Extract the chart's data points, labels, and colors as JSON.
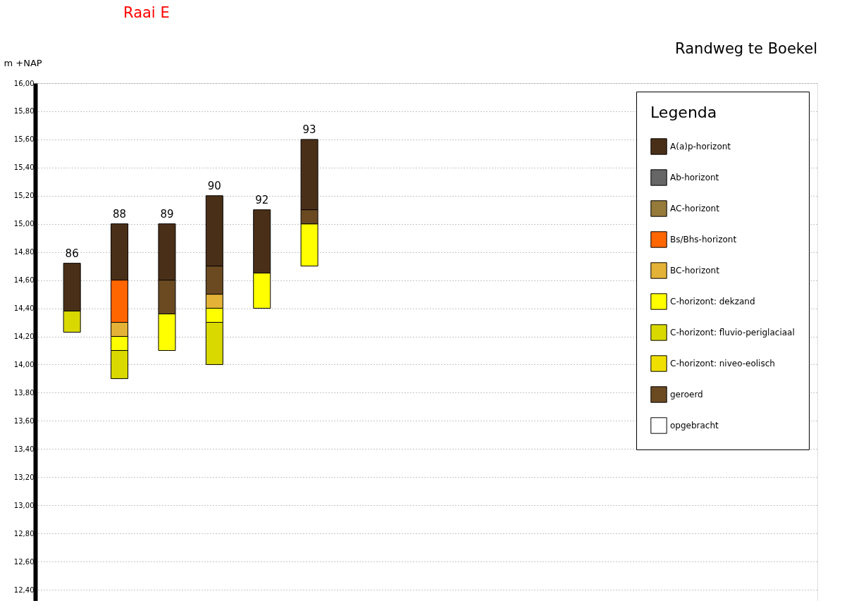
{
  "chart_data": {
    "type": "bar",
    "title": "Raai E",
    "subtitle": "Randweg te Boekel",
    "ylabel": "m +NAP",
    "legend_title": "Legenda",
    "categories": [
      "86",
      "88",
      "89",
      "90",
      "92",
      "93"
    ],
    "series": [
      {
        "name": "A(a)p-horizont",
        "color": "#4a2f18",
        "base": [
          14.38,
          14.6,
          14.6,
          14.7,
          14.65,
          15.1
        ],
        "values": [
          0.34,
          0.4,
          0.4,
          0.5,
          0.45,
          0.5
        ]
      },
      {
        "name": "Ab-horizont",
        "color": "#666666",
        "values": [
          null,
          null,
          null,
          null,
          null,
          null
        ]
      },
      {
        "name": "AC-horizont",
        "color": "#957a3a",
        "values": [
          null,
          null,
          null,
          null,
          null,
          null
        ]
      },
      {
        "name": "Bs/Bhs-horizont",
        "color": "#ff6600",
        "base": [
          null,
          14.3,
          null,
          null,
          null,
          null
        ],
        "values": [
          null,
          0.3,
          null,
          null,
          null,
          null
        ]
      },
      {
        "name": "BC-horizont",
        "color": "#e3b236",
        "base": [
          null,
          14.2,
          null,
          14.4,
          null,
          null
        ],
        "values": [
          null,
          0.1,
          null,
          0.1,
          null,
          null
        ]
      },
      {
        "name": "C-horizont: dekzand",
        "color": "#ffff00",
        "base": [
          null,
          14.1,
          14.1,
          14.3,
          14.4,
          14.7
        ],
        "values": [
          null,
          0.1,
          0.26,
          0.1,
          0.25,
          0.3
        ]
      },
      {
        "name": "C-horizont: fluvio-periglaciaal",
        "color": "#d9d900",
        "base": [
          14.23,
          13.9,
          null,
          14.0,
          null,
          null
        ],
        "values": [
          0.15,
          0.2,
          null,
          0.3,
          null,
          null
        ]
      },
      {
        "name": "C-horizont: niveo-eolisch",
        "color": "#f0e000",
        "values": [
          null,
          null,
          null,
          null,
          null,
          null
        ]
      },
      {
        "name": "geroerd",
        "color": "#6b4a22",
        "base": [
          null,
          null,
          14.36,
          14.5,
          null,
          15.0
        ],
        "values": [
          null,
          null,
          0.24,
          0.2,
          null,
          0.1
        ]
      },
      {
        "name": "opgebracht",
        "color": "#ffffff",
        "values": [
          null,
          null,
          null,
          null,
          null,
          null
        ]
      }
    ],
    "ylim": [
      12.32,
      16.0
    ],
    "yticks": [
      {
        "value": 12.4,
        "label": "12,40"
      },
      {
        "value": 12.6,
        "label": "12,60"
      },
      {
        "value": 12.8,
        "label": "12,80"
      },
      {
        "value": 13.0,
        "label": "13,00"
      },
      {
        "value": 13.2,
        "label": "13,20"
      },
      {
        "value": 13.4,
        "label": "13,40"
      },
      {
        "value": 13.6,
        "label": "13,60"
      },
      {
        "value": 13.8,
        "label": "13,80"
      },
      {
        "value": 14.0,
        "label": "14,00"
      },
      {
        "value": 14.2,
        "label": "14,20"
      },
      {
        "value": 14.4,
        "label": "14,40"
      },
      {
        "value": 14.6,
        "label": "14,60"
      },
      {
        "value": 14.8,
        "label": "14,80"
      },
      {
        "value": 15.0,
        "label": "15,00"
      },
      {
        "value": 15.2,
        "label": "15,20"
      },
      {
        "value": 15.4,
        "label": "15,40"
      },
      {
        "value": 15.6,
        "label": "15,60"
      },
      {
        "value": 15.8,
        "label": "15,80"
      },
      {
        "value": 16.0,
        "label": "16,00"
      }
    ],
    "grid": "y",
    "line_style": "dotted",
    "legend": "top right",
    "tick_labels": "y",
    "data_labels": false
  }
}
